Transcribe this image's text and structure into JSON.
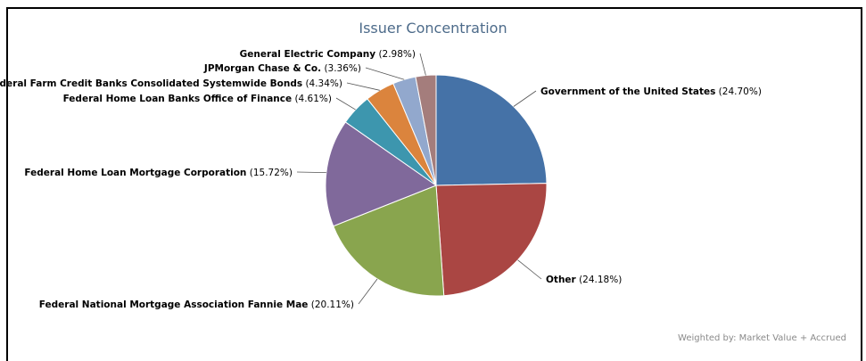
{
  "chart_data": {
    "type": "pie",
    "title": "Issuer Concentration",
    "slices": [
      {
        "name": "Government of the United States",
        "value": 24.7,
        "label": "(24.70%)",
        "color": "#4572a7"
      },
      {
        "name": "Other",
        "value": 24.18,
        "label": "(24.18%)",
        "color": "#aa4643"
      },
      {
        "name": "Federal National Mortgage Association Fannie Mae",
        "value": 20.11,
        "label": "(20.11%)",
        "color": "#89a54e"
      },
      {
        "name": "Federal Home Loan Mortgage Corporation",
        "value": 15.72,
        "label": "(15.72%)",
        "color": "#80699b"
      },
      {
        "name": "Federal Home Loan Banks Office of Finance",
        "value": 4.61,
        "label": "(4.61%)",
        "color": "#3d96ae"
      },
      {
        "name": "Federal Farm Credit Banks Consolidated Systemwide Bonds",
        "value": 4.34,
        "label": "(4.34%)",
        "color": "#db843d"
      },
      {
        "name": "JPMorgan Chase & Co.",
        "value": 3.36,
        "label": "(3.36%)",
        "color": "#92a8cd"
      },
      {
        "name": "General Electric Company",
        "value": 2.98,
        "label": "(2.98%)",
        "color": "#a47d7c"
      }
    ]
  },
  "footnote": "Weighted by: Market Value + Accrued"
}
